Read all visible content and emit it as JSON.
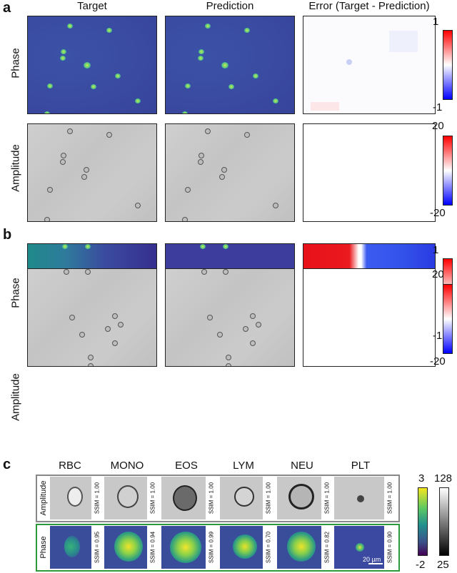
{
  "panels": {
    "a": "a",
    "b": "b",
    "c": "c"
  },
  "columns": [
    "Target",
    "Prediction",
    "Error (Target - Prediction)"
  ],
  "rows": {
    "phase": "Phase",
    "amplitude": "Amplitude"
  },
  "colorbars": {
    "a_phase": {
      "max": "1",
      "min": "-1"
    },
    "a_amp": {
      "max": "20",
      "min": "-20"
    },
    "b_phase": {
      "max": "1",
      "min": "-1"
    },
    "b_amp": {
      "max": "20",
      "min": "-20"
    },
    "c_phase": {
      "max": "3",
      "min": "-2"
    },
    "c_amp": {
      "max": "128",
      "min": "25"
    }
  },
  "cell_types": [
    {
      "name": "RBC",
      "amp_ssim": "SSIM = 1.00",
      "phase_ssim": "SSIM = 0.95"
    },
    {
      "name": "MONO",
      "amp_ssim": "SSIM = 1.00",
      "phase_ssim": "SSIM = 0.94"
    },
    {
      "name": "EOS",
      "amp_ssim": "SSIM = 1.00",
      "phase_ssim": "SSIM = 0.99"
    },
    {
      "name": "LYM",
      "amp_ssim": "SSIM = 1.00",
      "phase_ssim": "SSIM = 0.70"
    },
    {
      "name": "NEU",
      "amp_ssim": "SSIM = 1.00",
      "phase_ssim": "SSIM = 0.82"
    },
    {
      "name": "PLT",
      "amp_ssim": "SSIM = 1.00",
      "phase_ssim": "SSIM = 0.90"
    }
  ],
  "c_rows": {
    "amplitude": "Amplitude",
    "phase": "Phase"
  },
  "scale_bar": "20 µm",
  "colors": {
    "amp_frame": "#888888",
    "phase_frame": "#2e9a3c"
  }
}
